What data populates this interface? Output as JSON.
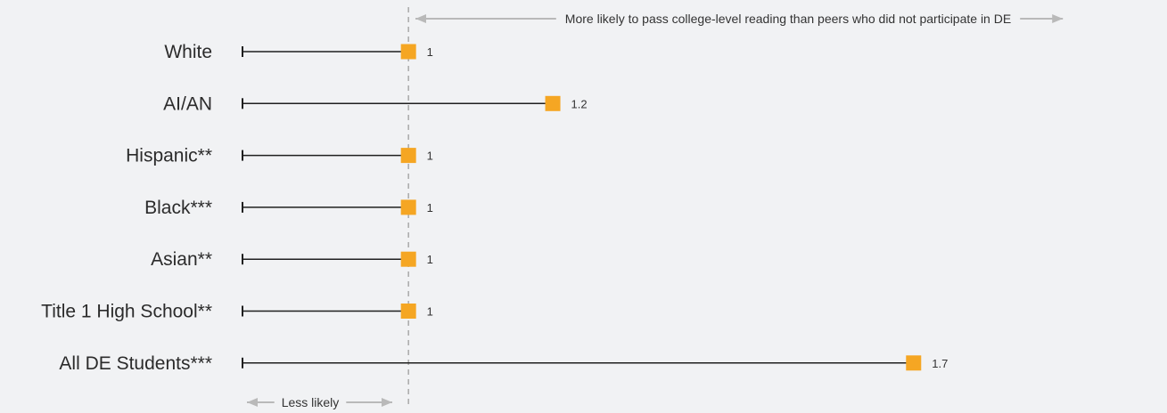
{
  "chart_data": {
    "type": "dot",
    "categories": [
      "White",
      "AI/AN",
      "Hispanic**",
      "Black***",
      "Asian**",
      "Title 1 High School**",
      "All DE Students***"
    ],
    "values": [
      1.0,
      1.2,
      1.0,
      1.0,
      1.0,
      1.0,
      1.7
    ],
    "value_labels": [
      "1",
      "1.2",
      "1",
      "1",
      "1",
      "1",
      "1.7"
    ],
    "reference_value": 1.0,
    "xlim": [
      0.77,
      1.83
    ],
    "annotations": {
      "more_likely": "More likely to pass college-level reading than peers who did not participate in DE",
      "less_likely": "Less likely"
    },
    "colors": {
      "marker": "#f5a623",
      "line": "#1f1f1f",
      "background": "#f1f2f4",
      "reference": "#a9a9a9"
    }
  }
}
